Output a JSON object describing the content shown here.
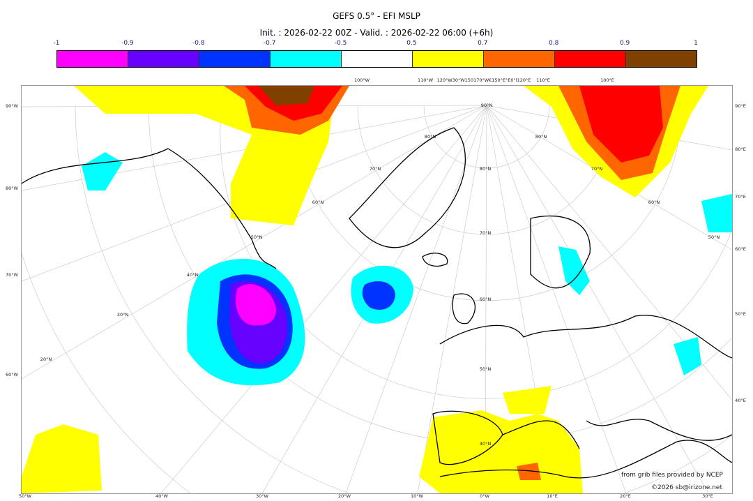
{
  "title": "GEFS 0.5° - EFI MSLP",
  "subtitle": "Init. : 2026-02-22 00Z - Valid. : 2026-02-22 06:00 (+6h)",
  "colorbar": {
    "ticks": [
      "-1",
      "-0.9",
      "-0.8",
      "-0.7",
      "-0.5",
      "0.5",
      "0.7",
      "0.8",
      "0.9",
      "1"
    ],
    "colors": [
      "#ff00ff",
      "#6600ff",
      "#0033ff",
      "#00ffff",
      "#ffffff",
      "#ffff00",
      "#ff6600",
      "#ff0000",
      "#804000"
    ]
  },
  "map": {
    "left_labels": [
      "90°W",
      "80°W",
      "70°W",
      "60°W"
    ],
    "right_labels": [
      "90°E",
      "80°E",
      "70°E",
      "60°E",
      "50°E",
      "40°E"
    ],
    "bottom_labels": [
      "50°W",
      "40°W",
      "30°W",
      "20°W",
      "10°W",
      "0°W",
      "10°E",
      "20°E",
      "30°E"
    ],
    "top_labels": [
      "100°W",
      "110°W",
      "120°W30°W150170°W€150°E°E0°l120°E",
      "110°E",
      "100°E"
    ],
    "inner_labels": [
      "50°N",
      "40°N",
      "30°N",
      "20°N",
      "60°N",
      "70°N",
      "80°N",
      "90°N",
      "80°N",
      "70°N",
      "60°N",
      "50°N",
      "80°N",
      "70°N",
      "60°N",
      "50°N",
      "40°N"
    ]
  },
  "credits": {
    "source": "from grib files provided by NCEP",
    "copyright": "©2026 sb@irizone.net"
  }
}
